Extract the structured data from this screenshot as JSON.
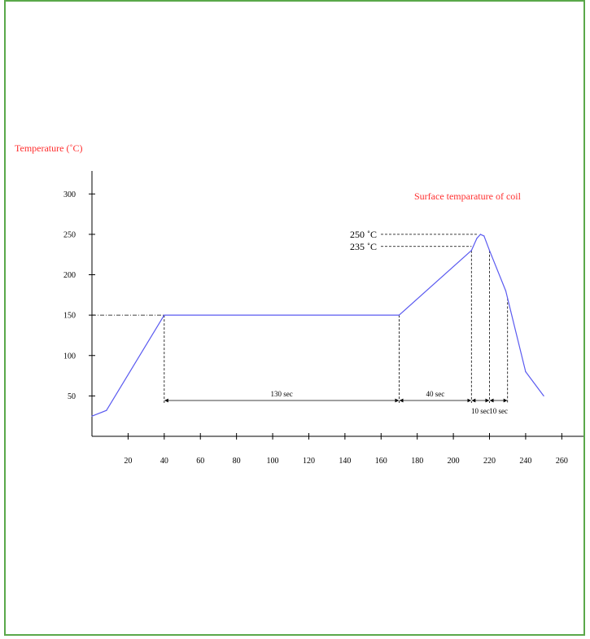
{
  "frame": {
    "border_color": "#5aa84a"
  },
  "chart_data": {
    "type": "line",
    "title": "",
    "ylabel": "Temperature (˚C)",
    "xlabel": "",
    "annotation_title": "Surface temparature of coil",
    "x_ticks": [
      20,
      40,
      60,
      80,
      100,
      120,
      140,
      160,
      180,
      200,
      220,
      240,
      260
    ],
    "y_ticks": [
      50,
      100,
      150,
      200,
      250,
      300
    ],
    "xlim": [
      0,
      270
    ],
    "ylim": [
      0,
      320
    ],
    "series": [
      {
        "color": "#5a5af0",
        "points": [
          [
            0,
            25
          ],
          [
            8,
            32
          ],
          [
            40,
            150
          ],
          [
            170,
            150
          ],
          [
            210,
            230
          ],
          [
            213,
            245
          ],
          [
            215,
            250
          ],
          [
            217,
            248
          ],
          [
            220,
            230
          ],
          [
            229,
            180
          ],
          [
            240,
            80
          ],
          [
            250,
            50
          ]
        ]
      }
    ],
    "reference_lines": [
      {
        "label": "250 ˚C",
        "y": 250,
        "x_end": 213
      },
      {
        "label": "235 ˚C",
        "y": 235,
        "x_end": 210
      }
    ],
    "level_guide": {
      "y": 150,
      "x_start": 0,
      "x_end": 40
    },
    "vertical_guides": [
      40,
      170,
      210,
      220,
      230
    ],
    "durations": [
      {
        "label": "130 sec",
        "from": 40,
        "to": 170,
        "row": 0
      },
      {
        "label": "40 sec",
        "from": 170,
        "to": 210,
        "row": 0
      },
      {
        "label": "10 sec",
        "from": 210,
        "to": 220,
        "row": 1
      },
      {
        "label": "10 sec",
        "from": 220,
        "to": 230,
        "row": 1
      }
    ],
    "colors": {
      "axis_label": "#ff3030",
      "annotation": "#ff3030",
      "line": "#5a5af0",
      "axis": "#000000"
    }
  }
}
